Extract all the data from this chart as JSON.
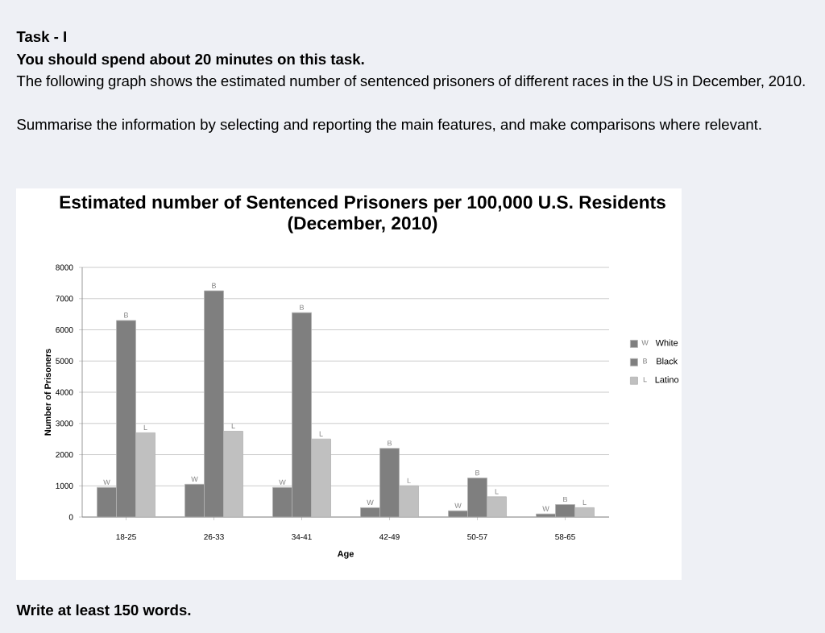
{
  "chart_data": {
    "type": "bar",
    "title": "Estimated number of Sentenced Prisoners per 100,000 U.S. Residents",
    "subtitle": "(December, 2010)",
    "xlabel": "Age",
    "ylabel": "Number of Prisoners",
    "categories": [
      "18-25",
      "26-33",
      "34-41",
      "42-49",
      "50-57",
      "58-65"
    ],
    "series": [
      {
        "name": "White",
        "color": "#7f7f7f",
        "values": [
          950,
          1050,
          950,
          300,
          200,
          100
        ],
        "value_labels": [
          "W",
          "W",
          "W",
          "W",
          "W",
          "W"
        ]
      },
      {
        "name": "Black",
        "color": "#7f7f7f",
        "values": [
          6300,
          7250,
          6550,
          2200,
          1250,
          400
        ],
        "value_labels": [
          "B",
          "B",
          "B",
          "B",
          "B",
          "B"
        ]
      },
      {
        "name": "Latino",
        "color": "#c0c0c0",
        "values": [
          2700,
          2750,
          2500,
          1000,
          650,
          300
        ],
        "value_labels": [
          "L",
          "L",
          "L",
          "L",
          "L",
          "L"
        ]
      }
    ],
    "ylim": [
      0,
      8000
    ],
    "yticks": [
      0,
      1000,
      2000,
      3000,
      4000,
      5000,
      6000,
      7000,
      8000
    ],
    "grid": "y",
    "legend": "right",
    "annotations": [
      "Task - I",
      "You should spend about 20 minutes on this task.",
      "The following graph shows the estimated number of sentenced prisoners of different races in the US in December, 2010.",
      "Summarise the information by selecting and reporting the main features, and make comparisons where relevant.",
      "Write at least 150 words."
    ]
  }
}
